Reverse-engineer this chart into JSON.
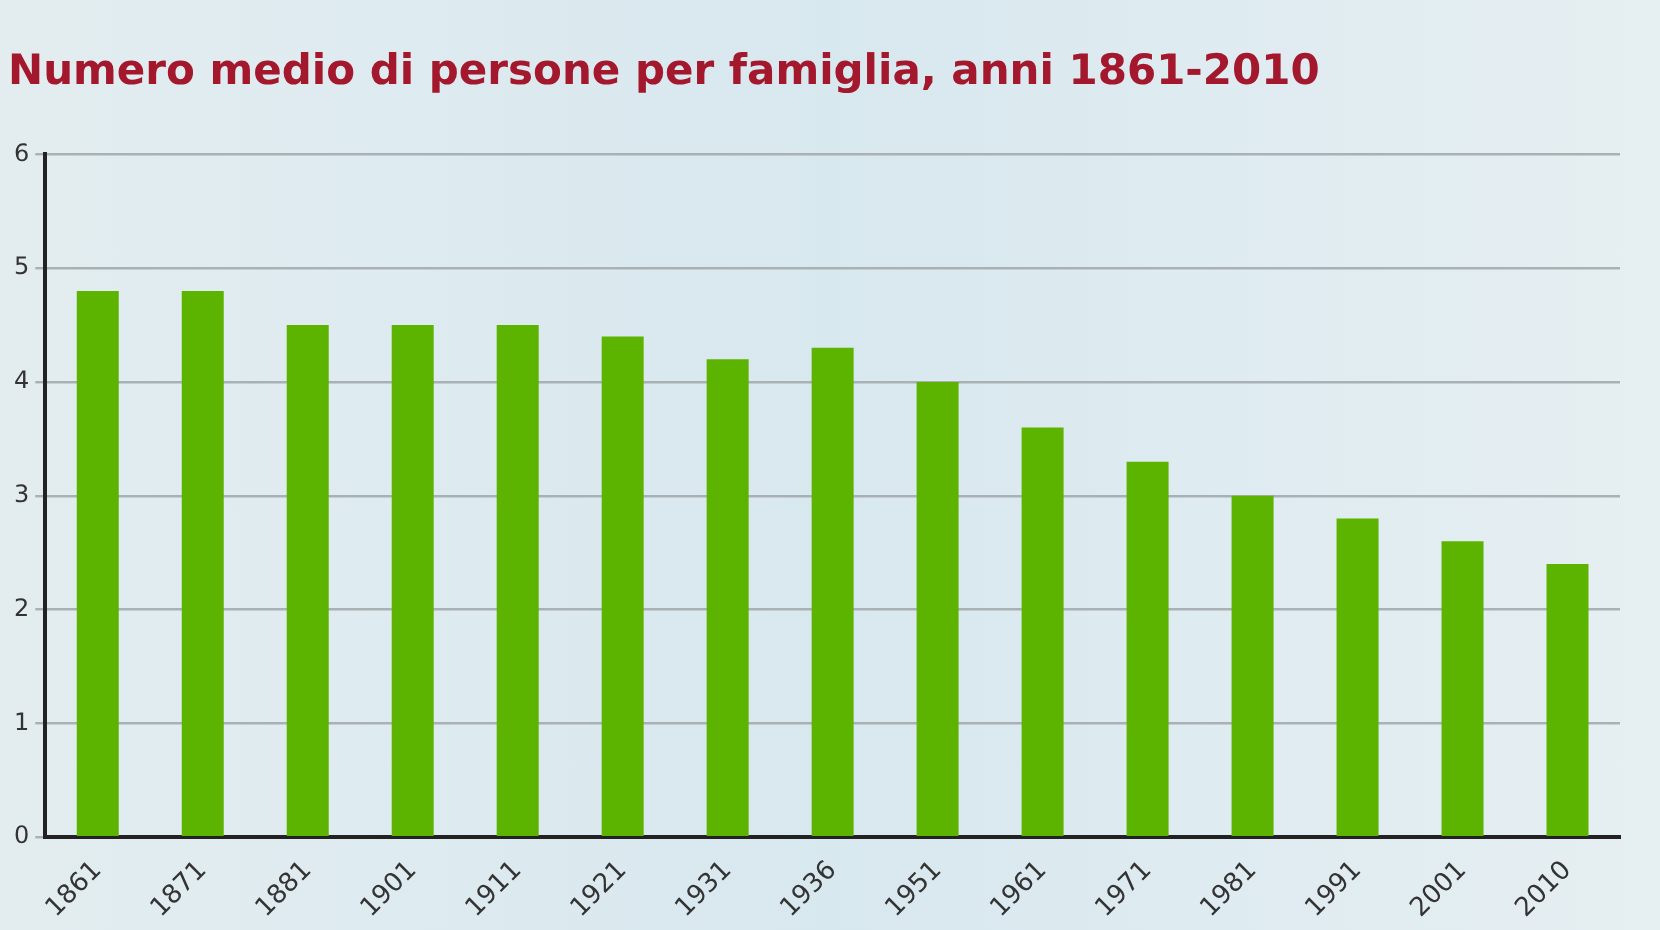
{
  "chart_data": {
    "type": "bar",
    "title": "Numero medio di persone per famiglia, anni 1861-2010",
    "categories": [
      "1861",
      "1871",
      "1881",
      "1901",
      "1911",
      "1921",
      "1931",
      "1936",
      "1951",
      "1961",
      "1971",
      "1981",
      "1991",
      "2001",
      "2010"
    ],
    "values": [
      4.8,
      4.8,
      4.5,
      4.5,
      4.5,
      4.4,
      4.2,
      4.3,
      4.0,
      3.6,
      3.3,
      3.0,
      2.8,
      2.6,
      2.4
    ],
    "color": "#5cb300",
    "ylim": [
      0,
      6
    ],
    "yticks": [
      0,
      1,
      2,
      3,
      4,
      5,
      6
    ],
    "grid": "y",
    "legend": false
  }
}
